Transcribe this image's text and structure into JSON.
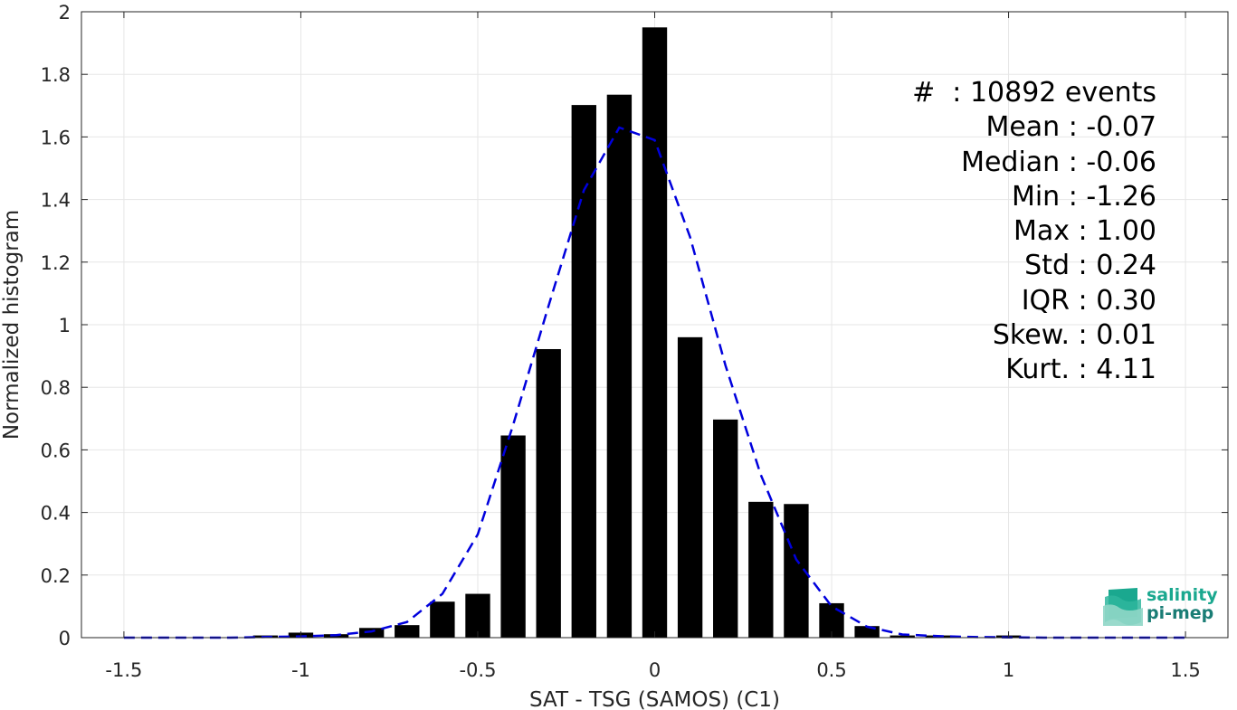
{
  "chart_data": {
    "type": "bar",
    "xlabel": "SAT - TSG (SAMOS) (C1)",
    "ylabel": "Normalized histogram",
    "xlim": [
      -1.62,
      1.62
    ],
    "ylim": [
      0,
      2
    ],
    "grid": true,
    "xticks": [
      -1.5,
      -1,
      -0.5,
      0,
      0.5,
      1,
      1.5
    ],
    "xtick_labels": [
      "-1.5",
      "-1",
      "-0.5",
      "0",
      "0.5",
      "1",
      "1.5"
    ],
    "yticks": [
      0,
      0.2,
      0.4,
      0.6,
      0.8,
      1,
      1.2,
      1.4,
      1.6,
      1.8,
      2
    ],
    "ytick_labels": [
      "0",
      "0.2",
      "0.4",
      "0.6",
      "0.8",
      "1",
      "1.2",
      "1.4",
      "1.6",
      "1.8",
      "2"
    ],
    "bar_width": 0.07,
    "bars": {
      "x": [
        -1.1,
        -1.0,
        -0.9,
        -0.8,
        -0.7,
        -0.6,
        -0.5,
        -0.4,
        -0.3,
        -0.2,
        -0.1,
        0.0,
        0.1,
        0.2,
        0.3,
        0.4,
        0.5,
        0.6,
        0.7,
        0.8,
        1.0
      ],
      "values": [
        0.007,
        0.016,
        0.011,
        0.031,
        0.04,
        0.115,
        0.14,
        0.646,
        0.922,
        1.702,
        1.735,
        1.95,
        0.96,
        0.697,
        0.434,
        0.427,
        0.11,
        0.037,
        0.007,
        0.007,
        0.007
      ],
      "color": "#000000"
    },
    "fit_curve": {
      "style": "dashed",
      "color": "#0000dd",
      "x": [
        -1.5,
        -1.4,
        -1.3,
        -1.2,
        -1.1,
        -1.0,
        -0.9,
        -0.8,
        -0.7,
        -0.6,
        -0.5,
        -0.4,
        -0.3,
        -0.2,
        -0.1,
        0.0,
        0.1,
        0.2,
        0.3,
        0.4,
        0.5,
        0.6,
        0.7,
        0.8,
        0.9,
        1.0,
        1.1,
        1.2,
        1.3,
        1.4,
        1.5
      ],
      "y": [
        0.0,
        0.0,
        0.0,
        0.0,
        0.002,
        0.004,
        0.008,
        0.02,
        0.05,
        0.14,
        0.33,
        0.68,
        1.06,
        1.43,
        1.63,
        1.59,
        1.28,
        0.87,
        0.52,
        0.25,
        0.1,
        0.035,
        0.01,
        0.005,
        0.002,
        0.001,
        0.0,
        0.0,
        0.0,
        0.0,
        0.0
      ]
    },
    "annotations": [
      "#  : 10892 events",
      "Mean : -0.07",
      "Median : -0.06",
      "Min : -1.26",
      "Max : 1.00",
      "Std : 0.24",
      "IQR : 0.30",
      "Skew. : 0.01",
      "Kurt. : 4.11"
    ]
  },
  "logo": {
    "line1": "salinity",
    "line2": "pi-mep",
    "colors": [
      "#1aa88f",
      "#1a7d75",
      "#8fd6c6"
    ]
  }
}
